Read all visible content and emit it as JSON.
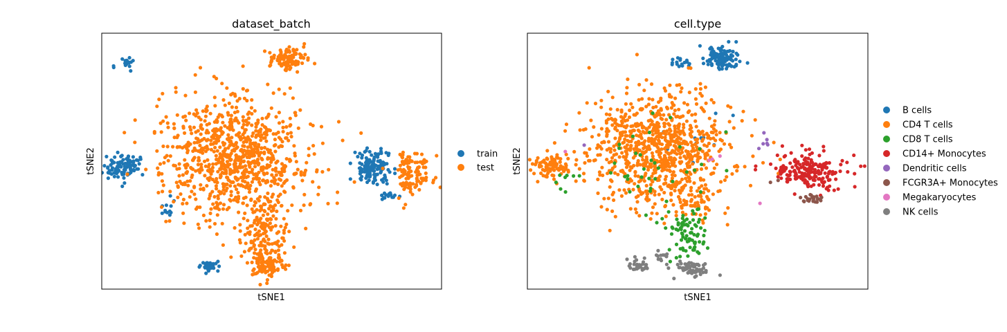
{
  "chart_data": [
    {
      "type": "scatter",
      "title": "dataset_batch",
      "xlabel": "tSNE1",
      "ylabel": "tSNE2",
      "grid": false,
      "ticks": false,
      "legend_position": "right",
      "series": [
        {
          "name": "train",
          "color": "#1f77b4",
          "clusters": [
            {
              "cx": 7,
              "cy": 88,
              "sx": 1.5,
              "sy": 1.1,
              "n": 18,
              "seed": 11
            },
            {
              "cx": 6,
              "cy": 48,
              "sx": 2.5,
              "sy": 2.4,
              "n": 95,
              "seed": 12
            },
            {
              "cx": 20,
              "cy": 31,
              "sx": 1.2,
              "sy": 2.0,
              "n": 12,
              "seed": 13
            },
            {
              "cx": 80,
              "cy": 48,
              "sx": 2.6,
              "sy": 3.2,
              "n": 130,
              "seed": 14
            },
            {
              "cx": 84,
              "cy": 36,
              "sx": 1.2,
              "sy": 1.0,
              "n": 16,
              "seed": 15
            },
            {
              "cx": 32,
              "cy": 9,
              "sx": 1.5,
              "sy": 1.3,
              "n": 34,
              "seed": 16
            }
          ]
        },
        {
          "name": "test",
          "color": "#ff7f0e",
          "clusters": [
            {
              "cx": 39,
              "cy": 52,
              "sx": 11,
              "sy": 12,
              "n": 900,
              "seed": 21
            },
            {
              "cx": 48,
              "cy": 20,
              "sx": 3.5,
              "sy": 8,
              "n": 180,
              "seed": 22
            },
            {
              "cx": 49,
              "cy": 9,
              "sx": 2.5,
              "sy": 1.8,
              "n": 70,
              "seed": 23
            },
            {
              "cx": 55,
              "cy": 90,
              "sx": 2.8,
              "sy": 2.4,
              "n": 110,
              "seed": 24
            },
            {
              "cx": 91,
              "cy": 45,
              "sx": 2.8,
              "sy": 4.5,
              "n": 120,
              "seed": 25
            }
          ]
        }
      ]
    },
    {
      "type": "scatter",
      "title": "cell.type",
      "xlabel": "tSNE1",
      "ylabel": "tSNE2",
      "grid": false,
      "ticks": false,
      "legend_position": "right",
      "series": [
        {
          "name": "B cells",
          "color": "#1f77b4",
          "clusters": [
            {
              "cx": 57,
              "cy": 90,
              "sx": 2.6,
              "sy": 2.3,
              "n": 115,
              "seed": 31
            },
            {
              "cx": 45,
              "cy": 88,
              "sx": 1.4,
              "sy": 1.1,
              "n": 16,
              "seed": 32
            },
            {
              "cx": 49,
              "cy": 60,
              "sx": 6,
              "sy": 4,
              "n": 10,
              "seed": 33
            }
          ]
        },
        {
          "name": "CD4 T cells",
          "color": "#ff7f0e",
          "clusters": [
            {
              "cx": 38,
              "cy": 55,
              "sx": 10.5,
              "sy": 11,
              "n": 850,
              "seed": 41
            },
            {
              "cx": 48,
              "cy": 35,
              "sx": 4,
              "sy": 5,
              "n": 60,
              "seed": 42
            },
            {
              "cx": 7,
              "cy": 48,
              "sx": 2.6,
              "sy": 2.4,
              "n": 95,
              "seed": 43
            }
          ]
        },
        {
          "name": "CD8 T cells",
          "color": "#2ca02c",
          "clusters": [
            {
              "cx": 47,
              "cy": 21,
              "sx": 3.2,
              "sy": 4.5,
              "n": 80,
              "seed": 51
            },
            {
              "cx": 38,
              "cy": 48,
              "sx": 9,
              "sy": 10,
              "n": 35,
              "seed": 52
            },
            {
              "cx": 11,
              "cy": 42,
              "sx": 2,
              "sy": 2,
              "n": 8,
              "seed": 53
            }
          ]
        },
        {
          "name": "CD14+ Monocytes",
          "color": "#d62728",
          "clusters": [
            {
              "cx": 83,
              "cy": 46,
              "sx": 5.5,
              "sy": 3.5,
              "n": 200,
              "seed": 61
            }
          ]
        },
        {
          "name": "Dendritic cells",
          "color": "#9467bd",
          "clusters": [
            {
              "cx": 70,
              "cy": 58,
              "sx": 1.2,
              "sy": 2.2,
              "n": 6,
              "seed": 71
            },
            {
              "cx": 17,
              "cy": 57,
              "sx": 0.5,
              "sy": 0.5,
              "n": 1,
              "seed": 72
            }
          ]
        },
        {
          "name": "FCGR3A+ Monocytes",
          "color": "#8c564b",
          "clusters": [
            {
              "cx": 84,
              "cy": 35,
              "sx": 2,
              "sy": 1,
              "n": 22,
              "seed": 81
            },
            {
              "cx": 73,
              "cy": 42,
              "sx": 0.8,
              "sy": 0.5,
              "n": 2,
              "seed": 82
            }
          ]
        },
        {
          "name": "Megakaryocytes",
          "color": "#e377c2",
          "clusters": [
            {
              "cx": 11,
              "cy": 54,
              "sx": 0.5,
              "sy": 0.5,
              "n": 1,
              "seed": 91
            },
            {
              "cx": 55,
              "cy": 51,
              "sx": 1,
              "sy": 0.8,
              "n": 3,
              "seed": 92
            },
            {
              "cx": 69,
              "cy": 33,
              "sx": 0.5,
              "sy": 0.5,
              "n": 1,
              "seed": 93
            }
          ]
        },
        {
          "name": "NK cells",
          "color": "#7f7f7f",
          "clusters": [
            {
              "cx": 48,
              "cy": 8,
              "sx": 2.5,
              "sy": 1.5,
              "n": 70,
              "seed": 101
            },
            {
              "cx": 33,
              "cy": 9,
              "sx": 1.6,
              "sy": 1.3,
              "n": 32,
              "seed": 102
            },
            {
              "cx": 39,
              "cy": 13,
              "sx": 1,
              "sy": 1,
              "n": 12,
              "seed": 103
            }
          ]
        }
      ]
    }
  ]
}
